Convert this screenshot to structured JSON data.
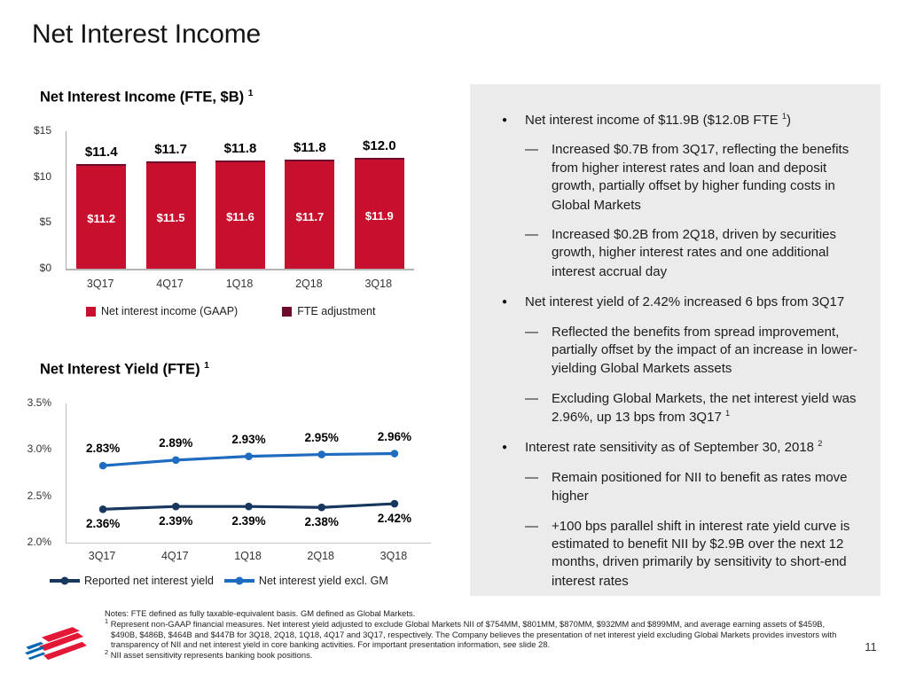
{
  "slide": {
    "title": "Net Interest Income",
    "page_number": "11"
  },
  "colors": {
    "gaap_red": "#C8102E",
    "fte_maroon": "#6E0A2D",
    "reported_navy": "#17375E",
    "excl_gm_blue": "#1E6BBF",
    "panel_bg": "#EBEBEB",
    "logo_red": "#E31837",
    "logo_blue": "#0066B2"
  },
  "chart_data": [
    {
      "type": "bar",
      "title": "Net Interest Income (FTE, $B)",
      "title_sup": "1",
      "categories": [
        "3Q17",
        "4Q17",
        "1Q18",
        "2Q18",
        "3Q18"
      ],
      "series": [
        {
          "name": "Net interest income (GAAP)",
          "color": "#C8102E",
          "values": [
            11.2,
            11.5,
            11.6,
            11.7,
            11.9
          ]
        },
        {
          "name": "FTE adjustment",
          "color": "#6E0A2D",
          "values": [
            0.2,
            0.2,
            0.2,
            0.1,
            0.1
          ]
        }
      ],
      "bar_labels": [
        "$11.2",
        "$11.5",
        "$11.6",
        "$11.7",
        "$11.9"
      ],
      "total_labels": [
        "$11.4",
        "$11.7",
        "$11.8",
        "$11.8",
        "$12.0"
      ],
      "totals": [
        11.4,
        11.7,
        11.8,
        11.8,
        12.0
      ],
      "ylim": [
        0,
        15
      ],
      "yticks": [
        {
          "label": "$0",
          "value": 0
        },
        {
          "label": "$5",
          "value": 5
        },
        {
          "label": "$10",
          "value": 10
        },
        {
          "label": "$15",
          "value": 15
        }
      ],
      "grid": false,
      "legend_position": "bottom"
    },
    {
      "type": "line",
      "title": "Net Interest Yield (FTE)",
      "title_sup": "1",
      "categories": [
        "3Q17",
        "4Q17",
        "1Q18",
        "2Q18",
        "3Q18"
      ],
      "series": [
        {
          "name": "Reported net interest yield",
          "color": "#17375E",
          "values": [
            2.36,
            2.39,
            2.39,
            2.38,
            2.42
          ],
          "labels": [
            "2.36%",
            "2.39%",
            "2.39%",
            "2.38%",
            "2.42%"
          ],
          "label_position": "below"
        },
        {
          "name": "Net interest yield excl. GM",
          "color": "#1E6BBF",
          "values": [
            2.83,
            2.89,
            2.93,
            2.95,
            2.96
          ],
          "labels": [
            "2.83%",
            "2.89%",
            "2.93%",
            "2.95%",
            "2.96%"
          ],
          "label_position": "above"
        }
      ],
      "ylim": [
        2.0,
        3.5
      ],
      "yticks": [
        {
          "label": "2.0%",
          "value": 2.0
        },
        {
          "label": "2.5%",
          "value": 2.5
        },
        {
          "label": "3.0%",
          "value": 3.0
        },
        {
          "label": "3.5%",
          "value": 3.5
        }
      ],
      "grid": false,
      "legend_position": "bottom"
    }
  ],
  "panel": {
    "markers": {
      "bullet": "●",
      "dash": "—"
    },
    "bullets": [
      {
        "main": {
          "text": "Net interest income of $11.9B ($12.0B FTE ",
          "sup": "1",
          "text2": ")"
        },
        "subs": [
          {
            "text": "Increased $0.7B from 3Q17, reflecting the benefits from higher interest rates and loan and deposit growth, partially offset by higher funding costs in Global Markets"
          },
          {
            "text": "Increased $0.2B from 2Q18, driven by securities growth, higher interest rates and one additional interest accrual day"
          }
        ]
      },
      {
        "main": {
          "text": "Net interest yield of 2.42% increased 6 bps from 3Q17"
        },
        "subs": [
          {
            "text": "Reflected the benefits from spread improvement, partially offset by the impact of an increase in lower-yielding Global Markets assets"
          },
          {
            "text": "Excluding Global Markets, the net interest yield was 2.96%, up 13 bps from 3Q17 ",
            "sup": "1"
          }
        ]
      },
      {
        "main": {
          "text": "Interest rate sensitivity as of September 30, 2018 ",
          "sup": "2"
        },
        "subs": [
          {
            "text": "Remain positioned for NII to benefit as rates move higher"
          },
          {
            "text": "+100 bps parallel shift in interest rate yield curve is estimated to benefit NII by $2.9B over the next 12 months, driven primarily by sensitivity to short-end interest rates"
          }
        ]
      }
    ]
  },
  "notes": {
    "line1": "Notes: FTE defined as fully taxable-equivalent basis. GM defined as Global Markets.",
    "fn1_sup": "1",
    "fn1": "Represent non-GAAP financial measures. Net interest yield adjusted to exclude Global Markets NII of $754MM, $801MM, $870MM, $932MM and $899MM, and average earning assets of $459B, $490B, $486B, $464B and $447B for 3Q18, 2Q18, 1Q18, 4Q17 and 3Q17, respectively. The Company believes the presentation of net interest yield excluding Global Markets provides investors with transparency of NII and net interest yield in core banking activities. For important presentation information, see slide 28.",
    "fn2_sup": "2",
    "fn2": "NII asset sensitivity represents banking book positions."
  },
  "icons": {
    "logo": "bank-of-america-flagscape"
  }
}
